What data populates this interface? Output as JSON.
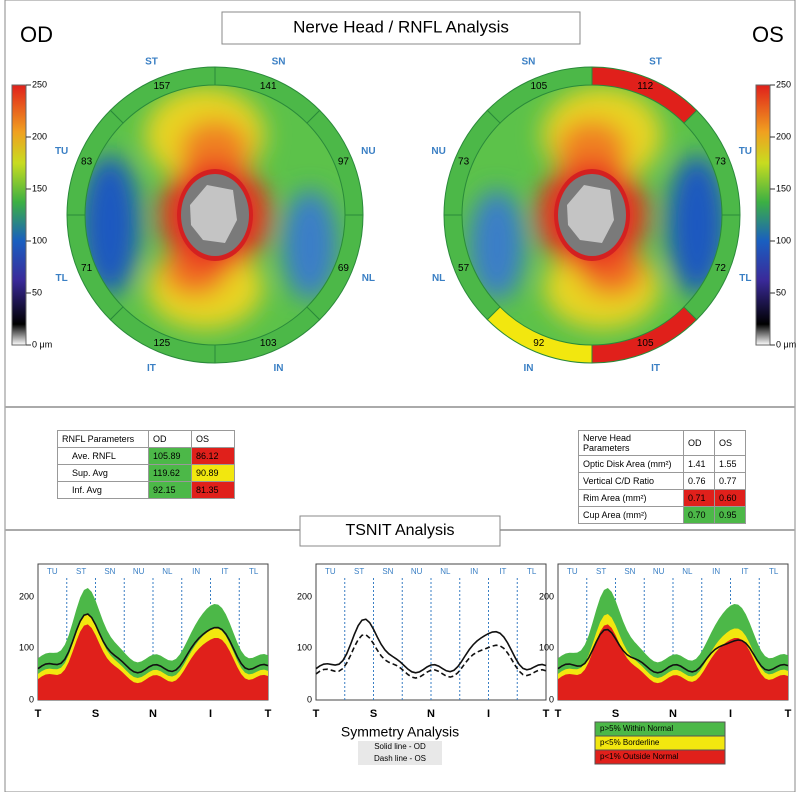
{
  "header": {
    "title": "Nerve Head / RNFL Analysis",
    "od_label": "OD",
    "os_label": "OS"
  },
  "color_scale": [
    "250",
    "200",
    "150",
    "100",
    "50",
    "0 μm"
  ],
  "od_map": {
    "sectors": [
      {
        "label": "ST",
        "value": "157",
        "color": "#4cb848"
      },
      {
        "label": "TU",
        "value": "83",
        "color": "#4cb848"
      },
      {
        "label": "TL",
        "value": "71",
        "color": "#4cb848"
      },
      {
        "label": "IT",
        "value": "125",
        "color": "#4cb848"
      },
      {
        "label": "IN",
        "value": "103",
        "color": "#4cb848"
      },
      {
        "label": "NL",
        "value": "69",
        "color": "#4cb848"
      },
      {
        "label": "NU",
        "value": "97",
        "color": "#4cb848"
      },
      {
        "label": "SN",
        "value": "141",
        "color": "#4cb848"
      }
    ]
  },
  "os_map": {
    "sectors": [
      {
        "label": "SN",
        "value": "105",
        "color": "#4cb848"
      },
      {
        "label": "NU",
        "value": "73",
        "color": "#4cb848"
      },
      {
        "label": "NL",
        "value": "57",
        "color": "#4cb848"
      },
      {
        "label": "IN",
        "value": "92",
        "color": "#f2e70f"
      },
      {
        "label": "IT",
        "value": "105",
        "color": "#e0201b"
      },
      {
        "label": "TL",
        "value": "72",
        "color": "#4cb848"
      },
      {
        "label": "TU",
        "value": "73",
        "color": "#4cb848"
      },
      {
        "label": "ST",
        "value": "112",
        "color": "#e0201b"
      }
    ]
  },
  "rnfl_table": {
    "rows": [
      [
        {
          "text": "RNFL Parameters"
        },
        {
          "text": "OD"
        },
        {
          "text": "OS"
        }
      ],
      [
        {
          "text": "Ave. RNFL"
        },
        {
          "text": "105.89",
          "color": "#4cb848"
        },
        {
          "text": "86.12",
          "color": "#e0201b"
        }
      ],
      [
        {
          "text": "Sup. Avg"
        },
        {
          "text": "119.62",
          "color": "#4cb848"
        },
        {
          "text": "90.89",
          "color": "#f2e70f"
        }
      ],
      [
        {
          "text": "Inf. Avg"
        },
        {
          "text": "92.15",
          "color": "#4cb848"
        },
        {
          "text": "81.35",
          "color": "#e0201b"
        }
      ]
    ]
  },
  "nerve_head_table": {
    "rows": [
      [
        {
          "text": "Nerve Head Parameters"
        },
        {
          "text": "OD"
        },
        {
          "text": "OS"
        }
      ],
      [
        {
          "text": "Optic Disk Area (mm²)"
        },
        {
          "text": "1.41"
        },
        {
          "text": "1.55"
        }
      ],
      [
        {
          "text": "Vertical C/D Ratio"
        },
        {
          "text": "0.76"
        },
        {
          "text": "0.77"
        }
      ],
      [
        {
          "text": "Rim Area (mm²)"
        },
        {
          "text": "0.71",
          "color": "#e0201b"
        },
        {
          "text": "0.60",
          "color": "#e0201b"
        }
      ],
      [
        {
          "text": "Cup Area (mm²)"
        },
        {
          "text": "0.70",
          "color": "#4cb848"
        },
        {
          "text": "0.95",
          "color": "#4cb848"
        }
      ]
    ]
  },
  "tsnit": {
    "title": "TSNIT Analysis",
    "sector_labels": [
      "TU",
      "ST",
      "SN",
      "NU",
      "NL",
      "IN",
      "IT",
      "TL"
    ],
    "x_labels": [
      "T",
      "S",
      "N",
      "I",
      "T"
    ],
    "y_ticks": [
      "200",
      "100",
      "0"
    ],
    "symmetry_title": "Symmetry Analysis",
    "solid_note": "Solid line - OD",
    "dash_note": "Dash line - OS",
    "legend": [
      {
        "text": "p>5% Within Normal",
        "color": "#4cb848"
      },
      {
        "text": "p<5% Borderline",
        "color": "#f2e70f"
      },
      {
        "text": "p<1% Outside Normal",
        "color": "#e0201b"
      }
    ]
  }
}
